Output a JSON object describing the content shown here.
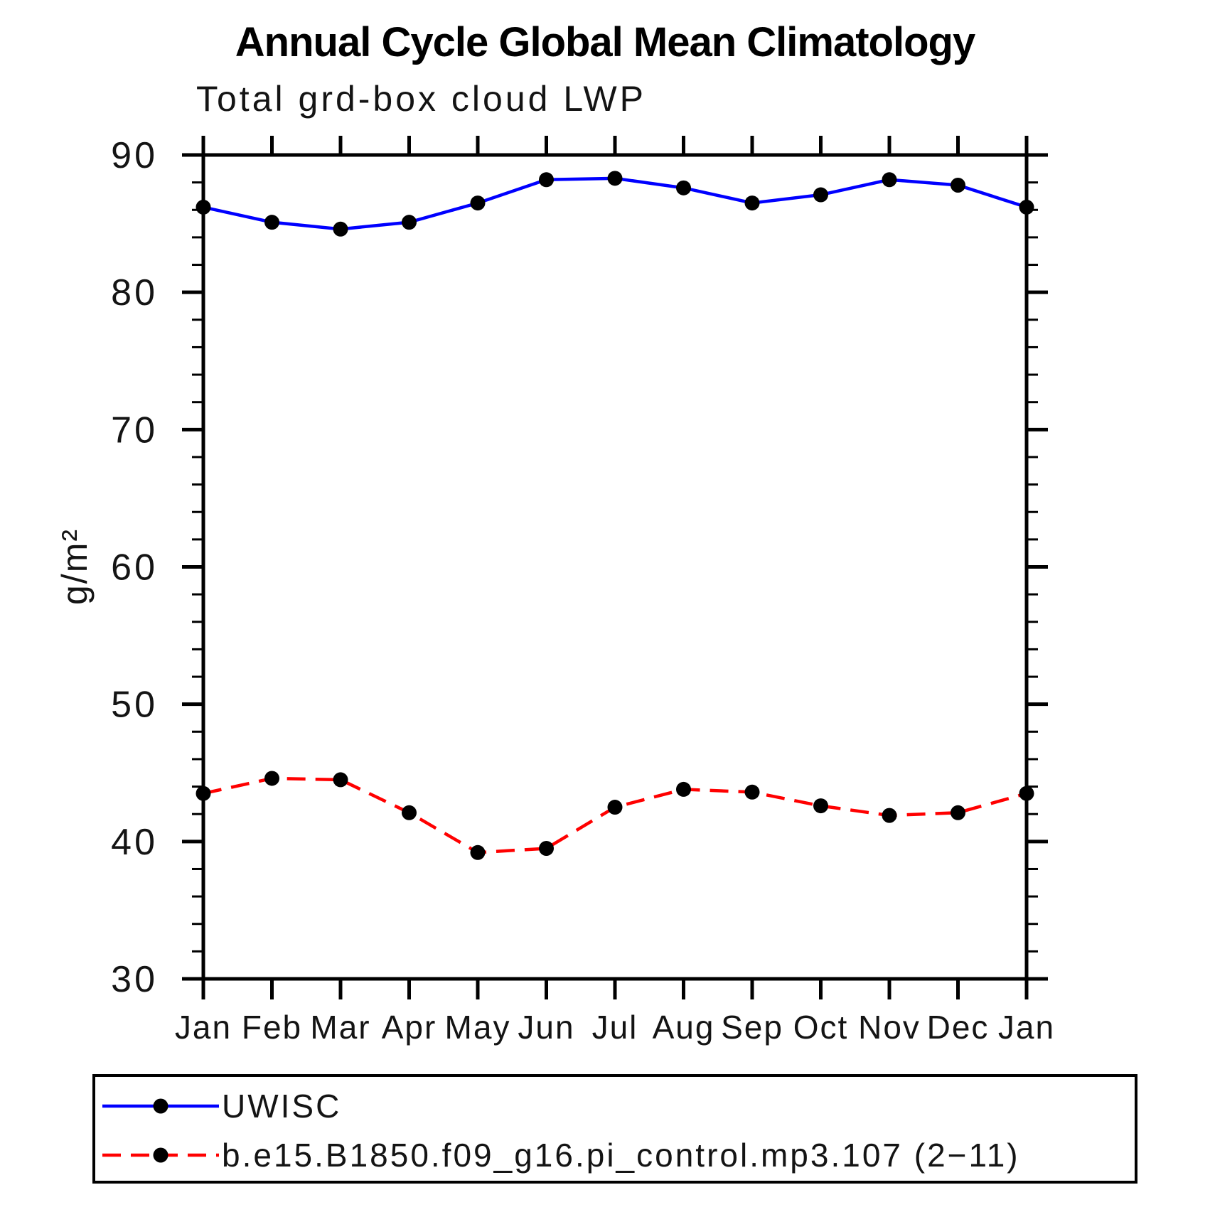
{
  "header": {
    "title": "Annual Cycle Global Mean Climatology",
    "subtitle": "Total grd-box cloud LWP"
  },
  "chart_data": {
    "type": "line",
    "title": "Annual Cycle Global Mean Climatology",
    "subtitle": "Total grd-box cloud LWP",
    "ylabel": "g/m²",
    "xlabel": "",
    "ylim": [
      30,
      90
    ],
    "yticks": [
      30,
      40,
      50,
      60,
      70,
      80,
      90
    ],
    "minor_tick_step": 2,
    "grid": false,
    "legend_position": "bottom",
    "categories": [
      "Jan",
      "Feb",
      "Mar",
      "Apr",
      "May",
      "Jun",
      "Jul",
      "Aug",
      "Sep",
      "Oct",
      "Nov",
      "Dec",
      "Jan"
    ],
    "series": [
      {
        "name": "UWISC",
        "color": "#0000ff",
        "line_style": "solid",
        "marker": "circle",
        "marker_color": "#000000",
        "values": [
          86.2,
          85.1,
          84.6,
          85.1,
          86.5,
          88.2,
          88.3,
          87.6,
          86.5,
          87.1,
          88.2,
          87.8,
          86.2
        ]
      },
      {
        "name": "b.e15.B1850.f09_g16.pi_control.mp3.107 (2−11)",
        "color": "#ff0000",
        "line_style": "dashed",
        "marker": "circle",
        "marker_color": "#000000",
        "values": [
          43.5,
          44.6,
          44.5,
          42.1,
          39.2,
          39.5,
          42.5,
          43.8,
          43.6,
          42.6,
          41.9,
          42.1,
          43.5
        ]
      }
    ]
  }
}
